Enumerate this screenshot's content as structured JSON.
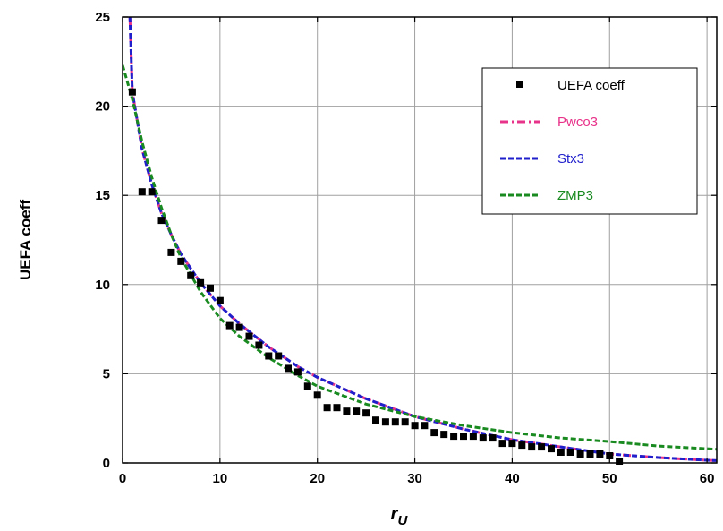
{
  "chart_data": {
    "type": "scatter",
    "xlabel": "r",
    "xlabel_sub": "U",
    "ylabel": "UEFA  coeff",
    "xlim": [
      0,
      61
    ],
    "ylim": [
      0,
      25
    ],
    "x_ticks": [
      0,
      10,
      20,
      30,
      40,
      50,
      60
    ],
    "y_ticks": [
      0,
      5,
      10,
      15,
      20,
      25
    ],
    "grid": true,
    "legend_position": "top-right",
    "scatter_series": {
      "name": "UEFA  coeff",
      "color": "#000000",
      "points": [
        [
          1,
          20.8
        ],
        [
          2,
          15.2
        ],
        [
          3,
          15.2
        ],
        [
          4,
          13.6
        ],
        [
          5,
          11.8
        ],
        [
          6,
          11.3
        ],
        [
          7,
          10.5
        ],
        [
          8,
          10.1
        ],
        [
          9,
          9.8
        ],
        [
          10,
          9.1
        ],
        [
          11,
          7.7
        ],
        [
          12,
          7.6
        ],
        [
          13,
          7.1
        ],
        [
          14,
          6.6
        ],
        [
          15,
          6.0
        ],
        [
          16,
          6.0
        ],
        [
          17,
          5.3
        ],
        [
          18,
          5.1
        ],
        [
          19,
          4.3
        ],
        [
          20,
          3.8
        ],
        [
          21,
          3.1
        ],
        [
          22,
          3.1
        ],
        [
          23,
          2.9
        ],
        [
          24,
          2.9
        ],
        [
          25,
          2.8
        ],
        [
          26,
          2.4
        ],
        [
          27,
          2.3
        ],
        [
          28,
          2.3
        ],
        [
          29,
          2.3
        ],
        [
          30,
          2.1
        ],
        [
          31,
          2.1
        ],
        [
          32,
          1.7
        ],
        [
          33,
          1.6
        ],
        [
          34,
          1.5
        ],
        [
          35,
          1.5
        ],
        [
          36,
          1.5
        ],
        [
          37,
          1.4
        ],
        [
          38,
          1.4
        ],
        [
          39,
          1.1
        ],
        [
          40,
          1.1
        ],
        [
          41,
          1.0
        ],
        [
          42,
          0.9
        ],
        [
          43,
          0.9
        ],
        [
          44,
          0.8
        ],
        [
          45,
          0.6
        ],
        [
          46,
          0.6
        ],
        [
          47,
          0.5
        ],
        [
          48,
          0.5
        ],
        [
          49,
          0.5
        ],
        [
          50,
          0.4
        ],
        [
          51,
          0.1
        ]
      ]
    },
    "line_series": [
      {
        "name": "Pwco3",
        "color": "#e8338a",
        "dash": "9,4,2,4",
        "points": [
          [
            0.75,
            25
          ],
          [
            1,
            20.8
          ],
          [
            2,
            17.6
          ],
          [
            3,
            15.6
          ],
          [
            4,
            14.0
          ],
          [
            5,
            12.8
          ],
          [
            6,
            11.7
          ],
          [
            8,
            10.1
          ],
          [
            10,
            8.8
          ],
          [
            12,
            7.8
          ],
          [
            15,
            6.5
          ],
          [
            18,
            5.4
          ],
          [
            20,
            4.8
          ],
          [
            25,
            3.6
          ],
          [
            30,
            2.6
          ],
          [
            35,
            1.9
          ],
          [
            40,
            1.3
          ],
          [
            45,
            0.9
          ],
          [
            50,
            0.5
          ],
          [
            55,
            0.3
          ],
          [
            60,
            0.15
          ],
          [
            61,
            0.13
          ]
        ]
      },
      {
        "name": "Stx3",
        "color": "#1f1fcc",
        "dash": "6,3",
        "points": [
          [
            0.75,
            25
          ],
          [
            1,
            20.8
          ],
          [
            2,
            17.6
          ],
          [
            3,
            15.6
          ],
          [
            4,
            14.0
          ],
          [
            5,
            12.8
          ],
          [
            6,
            11.7
          ],
          [
            8,
            10.1
          ],
          [
            10,
            8.8
          ],
          [
            12,
            7.8
          ],
          [
            15,
            6.5
          ],
          [
            18,
            5.4
          ],
          [
            20,
            4.8
          ],
          [
            25,
            3.6
          ],
          [
            30,
            2.6
          ],
          [
            35,
            1.9
          ],
          [
            40,
            1.3
          ],
          [
            45,
            0.9
          ],
          [
            50,
            0.5
          ],
          [
            55,
            0.3
          ],
          [
            60,
            0.15
          ],
          [
            61,
            0.13
          ]
        ]
      },
      {
        "name": "ZMP3",
        "color": "#188a1f",
        "dash": "6,3",
        "points": [
          [
            0,
            22.3
          ],
          [
            1,
            20.4
          ],
          [
            2,
            18.0
          ],
          [
            3,
            16.0
          ],
          [
            4,
            14.3
          ],
          [
            5,
            12.8
          ],
          [
            6,
            11.5
          ],
          [
            8,
            9.6
          ],
          [
            10,
            8.1
          ],
          [
            12,
            7.1
          ],
          [
            15,
            5.9
          ],
          [
            18,
            4.9
          ],
          [
            20,
            4.3
          ],
          [
            25,
            3.3
          ],
          [
            30,
            2.6
          ],
          [
            35,
            2.1
          ],
          [
            40,
            1.7
          ],
          [
            45,
            1.4
          ],
          [
            50,
            1.2
          ],
          [
            55,
            0.95
          ],
          [
            60,
            0.8
          ],
          [
            61,
            0.77
          ]
        ]
      }
    ]
  }
}
